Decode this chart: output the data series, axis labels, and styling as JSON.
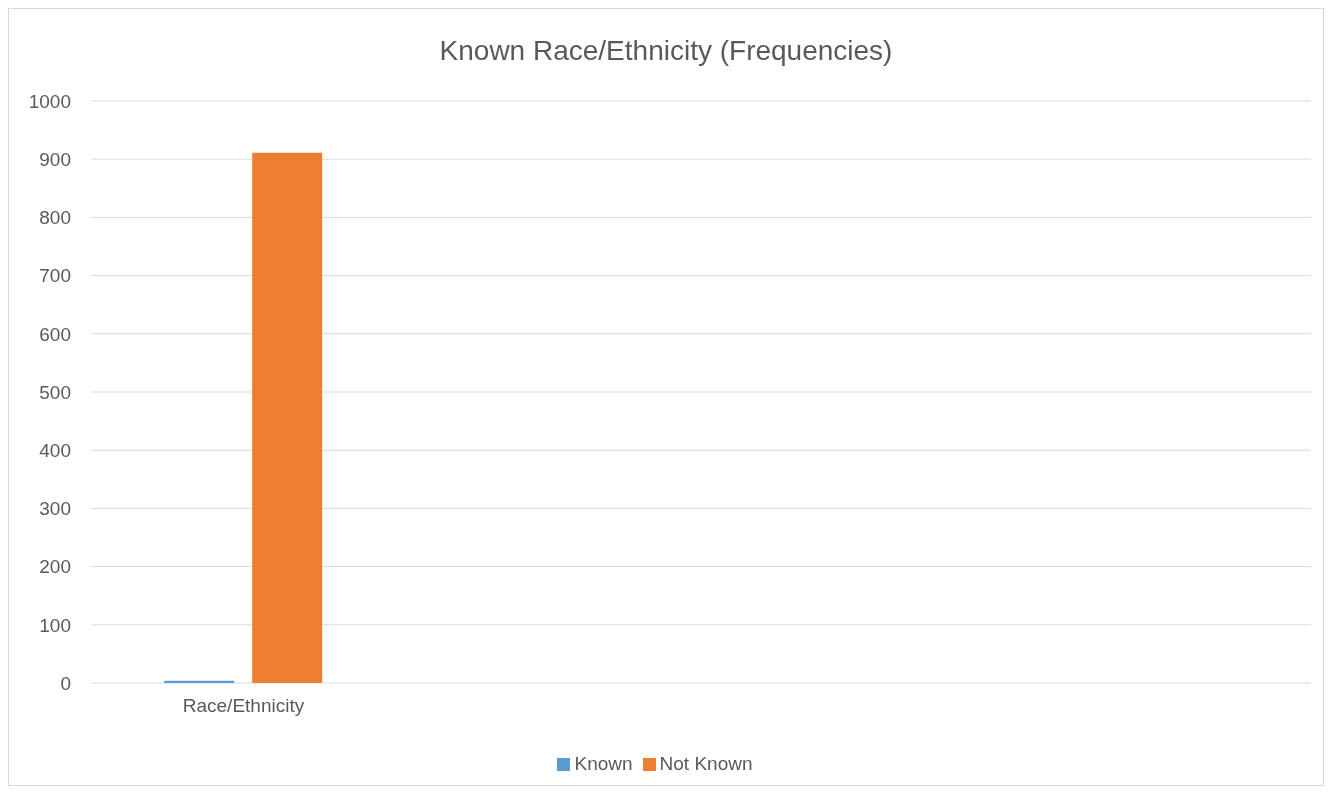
{
  "chart_data": {
    "type": "bar",
    "title": "Known Race/Ethnicity (Frequencies)",
    "categories": [
      "Race/Ethnicity",
      null,
      null,
      null
    ],
    "series": [
      {
        "name": "Known",
        "color": "#5b9bd5",
        "values": [
          4,
          null,
          null,
          null
        ]
      },
      {
        "name": "Not Known",
        "color": "#ed7d31",
        "values": [
          911,
          null,
          null,
          null
        ]
      }
    ],
    "ylim": [
      0,
      1000
    ],
    "yticks": [
      0,
      100,
      200,
      300,
      400,
      500,
      600,
      700,
      800,
      900,
      1000
    ],
    "grid": "y",
    "legend": "bottom"
  }
}
